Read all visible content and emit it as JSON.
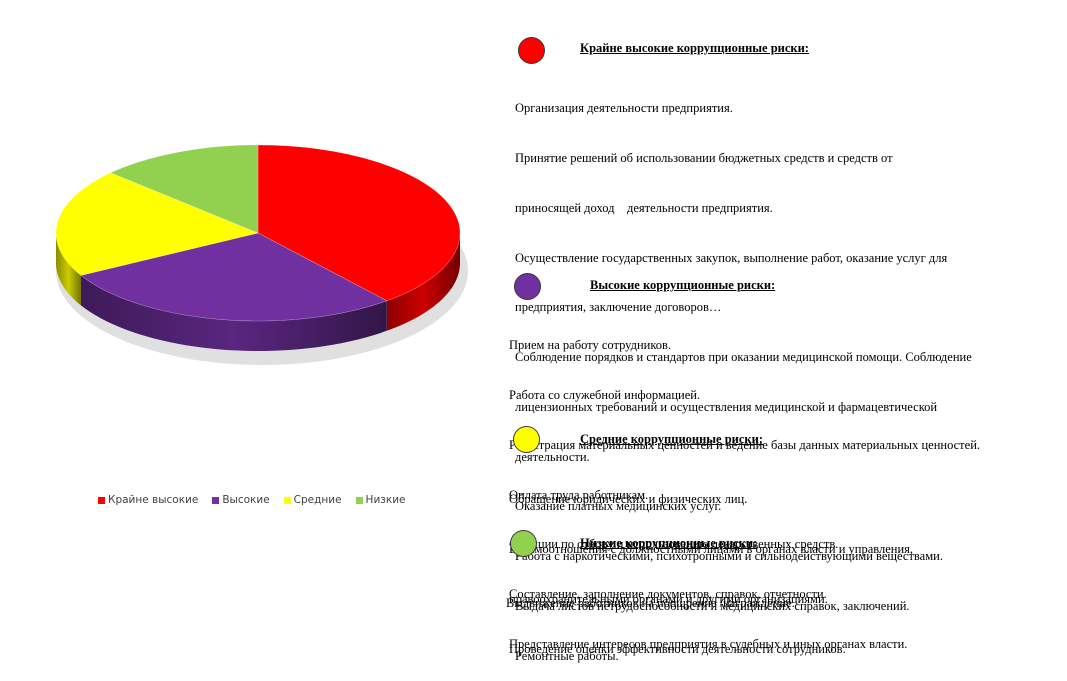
{
  "chart_data": {
    "type": "pie",
    "style": "3d",
    "categories": [
      "Крайне высокие",
      "Высокие",
      "Средние",
      "Низкие"
    ],
    "values": [
      39,
      28,
      20,
      13
    ],
    "colors": [
      "#ff0000",
      "#7030a0",
      "#ffff00",
      "#92d050"
    ],
    "legend_position": "bottom"
  },
  "sections": [
    {
      "color": "#ff0000",
      "title": "Крайне высокие коррупционные риски:",
      "lines": [
        "Организация деятельности предприятия.",
        "Принятие решений об использовании бюджетных средств и средств от",
        "приносящей доход    деятельности предприятия.",
        "Осуществление государственных закупок, выполнение работ, оказание услуг для",
        "предприятия, заключение договоров…",
        "Соблюдение порядков и стандартов при оказании медицинской помощи. Соблюдение",
        "лицензионных требований и осуществления медицинской и фармацевтической",
        "деятельности.",
        "Оказание платных медицинских услуг.",
        "Работа с наркотическими, психотропными и сильнодействующими веществами.",
        "Выдача листов нетрудоспособности и медицинских справок, заключений.",
        "Ремонтные работы."
      ]
    },
    {
      "color": "#7030a0",
      "title": "Высокие коррупционные риски:",
      "lines": [
        "Прием на работу сотрудников.",
        "Работа со служебной информацией.",
        "Регистрация материальных ценностей и ведение базы данных материальных ценностей.",
        "Оплата труда работникам.",
        "Функции по отбору и использованию лекарственных средств.",
        "Составление, заполнение документов, справок, отчетности.",
        "Представление интересов предприятия в судебных и иных органах власти."
      ]
    },
    {
      "color": "#ffff00",
      "title": "Средние коррупционные риски:",
      "lines": [
        "Обращение юридических и физических лиц.",
        "Взаимоотношения с должностными лицами в органах власти и управления,",
        "правоохранительными органами и другими организациями.",
        "Проведение оценки эффективности деятельности сотрудников."
      ]
    },
    {
      "color": "#92d050",
      "title": "Низкие коррупционные риски:",
      "lines": [
        "Выдвижение работников на поощрение /награждение."
      ]
    }
  ]
}
